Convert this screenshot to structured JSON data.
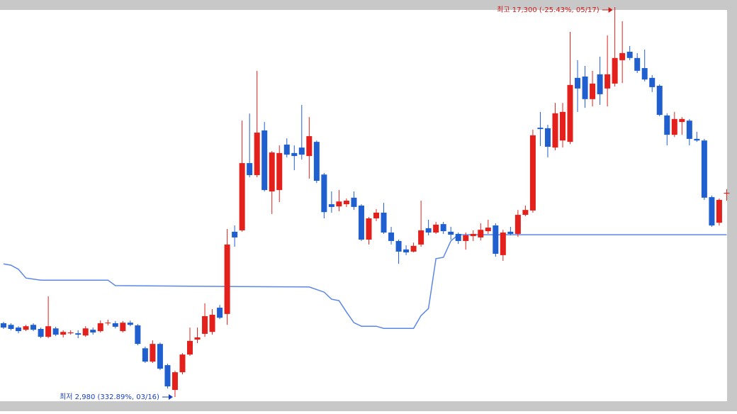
{
  "chart_data": {
    "type": "candlestick",
    "ylim": [
      2460,
      17560
    ],
    "up_color": "#e3201b",
    "down_color": "#1f5fcf",
    "open": [
      5690,
      5630,
      5530,
      5450,
      5630,
      5480,
      5190,
      5500,
      5270,
      5320,
      5320,
      5240,
      5450,
      5400,
      5690,
      5690,
      5400,
      5710,
      5610,
      4770,
      4280,
      4930,
      4150,
      3240,
      3890,
      4540,
      5090,
      5300,
      5370,
      6260,
      6030,
      9050,
      9100,
      11570,
      11130,
      12770,
      10530,
      10580,
      12250,
      11940,
      12140,
      11830,
      12350,
      11150,
      10060,
      9980,
      10060,
      10300,
      10010,
      8760,
      9540,
      9750,
      9020,
      8710,
      8400,
      8320,
      8580,
      9180,
      9020,
      9330,
      9050,
      8970,
      8710,
      8890,
      8840,
      9070,
      9280,
      8190,
      9050,
      8970,
      9670,
      9830,
      12870,
      12850,
      12140,
      12400,
      12350,
      14700,
      14750,
      13920,
      14830,
      14310,
      14490,
      15350,
      15660,
      15430,
      15060,
      14700,
      14410,
      13320,
      12610,
      13080,
      13130,
      12460,
      12400,
      10320,
      9380,
      10450
    ],
    "high": [
      5740,
      5690,
      5580,
      5630,
      5690,
      5530,
      6680,
      5560,
      5430,
      5430,
      5430,
      5580,
      5530,
      5790,
      5820,
      5770,
      5770,
      5790,
      5660,
      4830,
      5060,
      4980,
      4200,
      3940,
      4590,
      5530,
      5530,
      6420,
      6210,
      6360,
      9150,
      9280,
      13130,
      13390,
      14960,
      13080,
      12010,
      12220,
      12480,
      12220,
      13710,
      13260,
      12400,
      11210,
      10530,
      10580,
      10270,
      10530,
      10060,
      9590,
      9880,
      10110,
      9230,
      8760,
      8550,
      8650,
      10190,
      9490,
      9410,
      9410,
      9230,
      9020,
      9020,
      9100,
      9360,
      9490,
      9360,
      9120,
      9230,
      9850,
      10010,
      12800,
      13450,
      12980,
      13780,
      13780,
      16390,
      15350,
      15140,
      14960,
      15480,
      16260,
      17300,
      16780,
      15870,
      15610,
      15740,
      14800,
      14460,
      13400,
      13450,
      13260,
      13190,
      12720,
      12460,
      10380,
      10270,
      10610
    ],
    "low": [
      5480,
      5430,
      5320,
      5400,
      5400,
      5140,
      5140,
      5220,
      5170,
      5270,
      5140,
      5190,
      5270,
      5350,
      5610,
      5500,
      5350,
      5580,
      4880,
      4230,
      4230,
      3970,
      3290,
      2980,
      3810,
      4490,
      4960,
      5190,
      5270,
      5840,
      5630,
      8500,
      9050,
      11050,
      11050,
      10530,
      9700,
      10140,
      11780,
      11310,
      11700,
      11000,
      10840,
      9540,
      9750,
      9800,
      9960,
      9850,
      8710,
      8580,
      9440,
      8970,
      8580,
      7870,
      8190,
      8290,
      8500,
      8920,
      8970,
      8970,
      8760,
      8600,
      8390,
      8710,
      8730,
      8970,
      8130,
      7980,
      8920,
      8860,
      9620,
      9750,
      12200,
      11780,
      12040,
      12140,
      12270,
      13450,
      13600,
      13650,
      13710,
      13650,
      14380,
      14510,
      15350,
      14880,
      14570,
      14180,
      13290,
      12220,
      12530,
      12610,
      12220,
      12350,
      10220,
      9230,
      9280,
      10190
    ],
    "close": [
      5530,
      5480,
      5400,
      5580,
      5450,
      5190,
      5580,
      5270,
      5370,
      5350,
      5270,
      5500,
      5350,
      5690,
      5710,
      5560,
      5710,
      5630,
      4930,
      4280,
      4930,
      4020,
      3370,
      3890,
      4540,
      5040,
      5170,
      5950,
      6000,
      5890,
      8580,
      8840,
      11570,
      11130,
      12690,
      10580,
      11960,
      11940,
      11880,
      11830,
      11880,
      12560,
      10920,
      9770,
      9960,
      10160,
      10190,
      9960,
      8760,
      9540,
      9750,
      9020,
      8710,
      8320,
      8290,
      8530,
      9100,
      9020,
      9310,
      9070,
      8940,
      8710,
      8920,
      8970,
      9120,
      9200,
      8240,
      9020,
      8970,
      9670,
      9850,
      12590,
      12820,
      12170,
      13400,
      13450,
      14440,
      14310,
      13920,
      14490,
      14100,
      14830,
      15430,
      15610,
      15430,
      14960,
      14640,
      14360,
      13340,
      12610,
      13190,
      13190,
      12460,
      12400,
      10300,
      9280,
      10220,
      10480
    ],
    "line": {
      "color": "#5b87e6",
      "x": [
        0,
        1,
        2,
        3,
        5,
        14,
        15,
        30,
        41,
        43,
        44,
        45,
        46,
        47,
        48,
        50,
        51,
        55,
        56,
        57,
        58,
        59,
        60,
        61,
        97
      ],
      "values": [
        7870,
        7820,
        7670,
        7350,
        7270,
        7270,
        7070,
        7040,
        7020,
        6830,
        6570,
        6520,
        6100,
        5710,
        5580,
        5580,
        5500,
        5500,
        5970,
        6230,
        8060,
        8110,
        8710,
        8940,
        8940
      ]
    },
    "annotations": [
      {
        "text": "최고 17,300 (-25.43%, 05/17)",
        "color": "#d11a1a"
      },
      {
        "text": "최저 2,980 (332.89%, 03/16)",
        "color": "#1a3fc4"
      }
    ]
  }
}
